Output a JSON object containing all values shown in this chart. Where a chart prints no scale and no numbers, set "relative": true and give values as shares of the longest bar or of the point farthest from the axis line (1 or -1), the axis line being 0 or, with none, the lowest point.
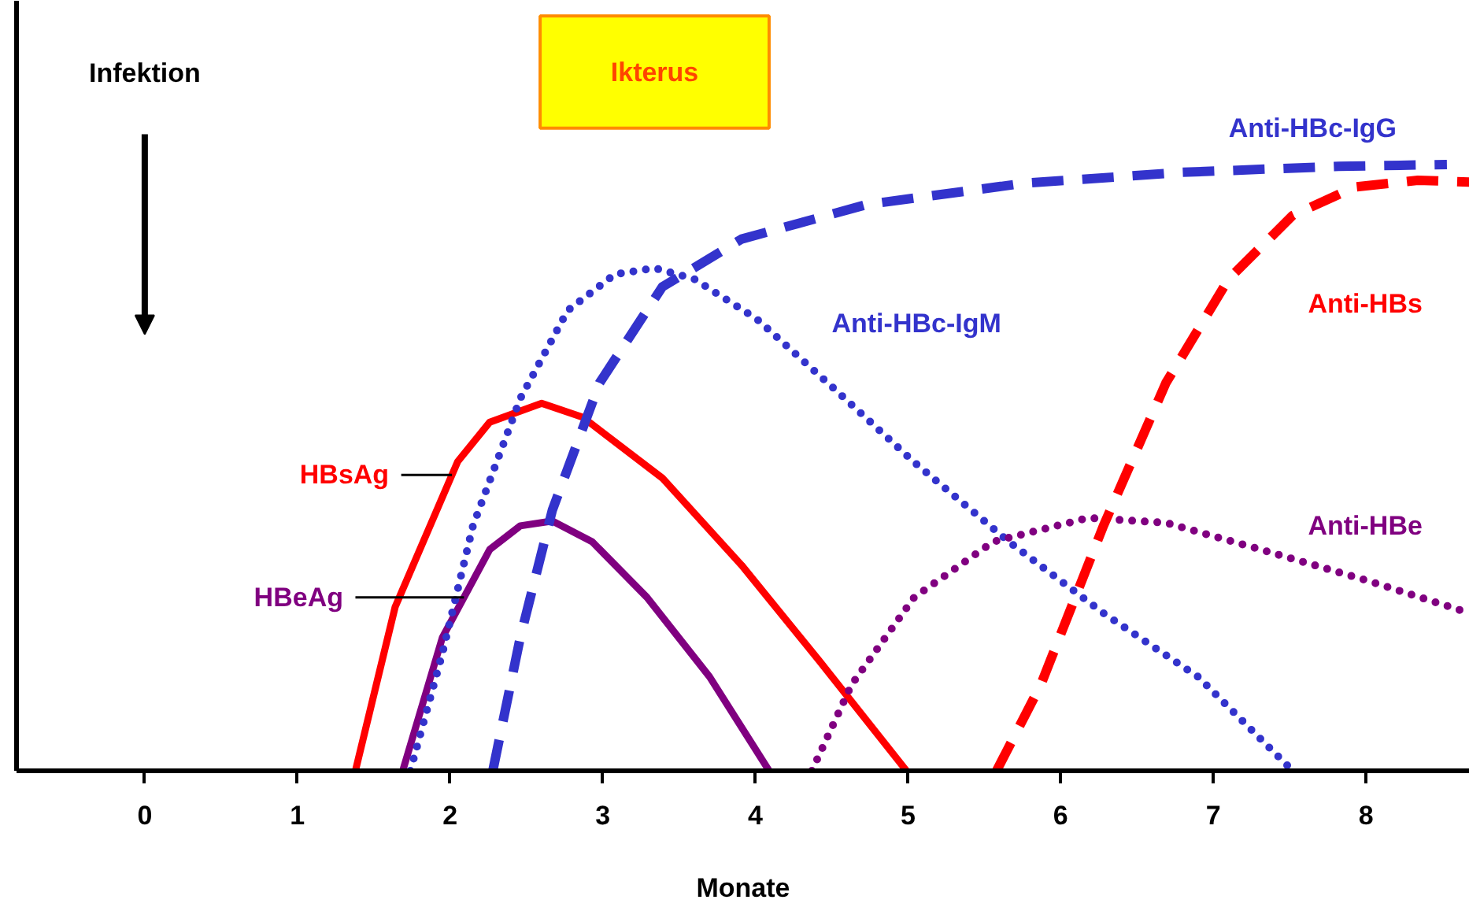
{
  "chart_data": {
    "type": "line",
    "relative": true,
    "xlabel": "Monate",
    "xlim": [
      -0.84,
      8.68
    ],
    "xticks": [
      0,
      1,
      2,
      3,
      4,
      5,
      6,
      7,
      8
    ],
    "tick_labels": "x",
    "series": [
      {
        "name": "HBsAg",
        "color": "#ff0000",
        "line_style": "solid",
        "x": [
          1.38,
          1.64,
          2.05,
          2.26,
          2.6,
          2.87,
          3.39,
          3.91,
          4.42,
          4.99
        ],
        "values": [
          0,
          0.27,
          0.51,
          0.575,
          0.606,
          0.583,
          0.483,
          0.339,
          0.181,
          0
        ]
      },
      {
        "name": "HBeAg",
        "color": "#800080",
        "line_style": "solid",
        "x": [
          1.69,
          1.95,
          2.26,
          2.46,
          2.67,
          2.93,
          3.29,
          3.7,
          4.09
        ],
        "values": [
          0,
          0.22,
          0.365,
          0.404,
          0.412,
          0.378,
          0.286,
          0.155,
          0
        ]
      },
      {
        "name": "Anti-HBc-IgM",
        "color": "#3333cc",
        "line_style": "dotted",
        "x": [
          1.74,
          1.95,
          2.15,
          2.46,
          2.77,
          3.08,
          3.34,
          3.6,
          4.01,
          4.53,
          5.04,
          5.66,
          6.28,
          6.9,
          7.52
        ],
        "values": [
          0,
          0.194,
          0.404,
          0.614,
          0.759,
          0.819,
          0.829,
          0.811,
          0.745,
          0.627,
          0.509,
          0.378,
          0.26,
          0.155,
          0
        ]
      },
      {
        "name": "Anti-HBc-IgG",
        "color": "#3333cc",
        "line_style": "dashed",
        "x": [
          2.28,
          2.46,
          2.67,
          2.98,
          3.39,
          3.91,
          4.73,
          5.76,
          6.79,
          7.82,
          8.53
        ],
        "values": [
          0,
          0.22,
          0.43,
          0.64,
          0.798,
          0.877,
          0.934,
          0.969,
          0.987,
          0.997,
          1.0
        ]
      },
      {
        "name": "Anti-HBe",
        "color": "#800080",
        "line_style": "dotted",
        "x": [
          4.37,
          4.63,
          5.04,
          5.56,
          6.18,
          6.69,
          7.31,
          8.03,
          8.68
        ],
        "values": [
          0,
          0.142,
          0.286,
          0.378,
          0.417,
          0.409,
          0.365,
          0.312,
          0.26
        ]
      },
      {
        "name": "Anti-HBs",
        "color": "#ff0000",
        "line_style": "dashed",
        "x": [
          5.58,
          5.87,
          6.28,
          6.69,
          7.1,
          7.52,
          7.93,
          8.34,
          8.68
        ],
        "values": [
          0,
          0.142,
          0.404,
          0.64,
          0.811,
          0.916,
          0.963,
          0.974,
          0.971
        ]
      }
    ],
    "annotations": [
      "Infektion",
      "Ikterus"
    ]
  }
}
